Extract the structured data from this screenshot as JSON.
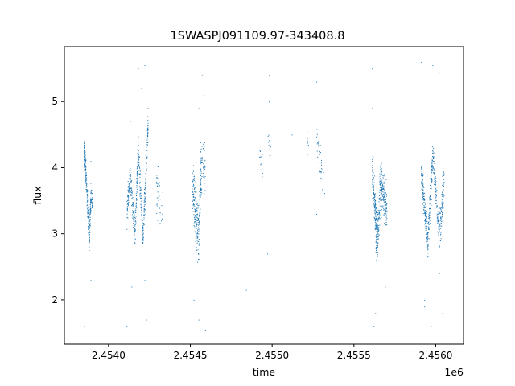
{
  "chart_data": {
    "type": "scatter",
    "title": "1SWASPJ091109.97-343408.8",
    "xlabel": "time",
    "ylabel": "flux",
    "x_offset_label": "1e6",
    "xlim": [
      2.45373,
      2.45617
    ],
    "ylim": [
      1.33,
      5.83
    ],
    "x_ticks": [
      2.454,
      2.4545,
      2.455,
      2.4555,
      2.456
    ],
    "x_tick_labels": [
      "2.4540",
      "2.4545",
      "2.4550",
      "2.4555",
      "2.4560"
    ],
    "y_ticks": [
      2,
      3,
      4,
      5
    ],
    "y_tick_labels": [
      "2",
      "3",
      "4",
      "5"
    ],
    "grid": false,
    "marker_color": "#1f77b4",
    "series": [
      {
        "segments": [
          {
            "x_start": 2.45385,
            "x_end": 2.45386,
            "y_start": 4.3,
            "y_end": 3.9,
            "spread": 0.15,
            "n": 70
          },
          {
            "x_start": 2.45386,
            "x_end": 2.45388,
            "y_start": 3.9,
            "y_end": 2.9,
            "spread": 0.15,
            "n": 90
          },
          {
            "x_start": 2.45388,
            "x_end": 2.45389,
            "y_start": 2.9,
            "y_end": 3.6,
            "spread": 0.15,
            "n": 70
          },
          {
            "x_start": 2.45389,
            "x_end": 2.4539,
            "y_start": 3.6,
            "y_end": 3.5,
            "spread": 0.15,
            "n": 30
          },
          {
            "x_start": 2.45411,
            "x_end": 2.45413,
            "y_start": 3.3,
            "y_end": 3.9,
            "spread": 0.18,
            "n": 70
          },
          {
            "x_start": 2.45413,
            "x_end": 2.45416,
            "y_start": 3.9,
            "y_end": 3.0,
            "spread": 0.18,
            "n": 90
          },
          {
            "x_start": 2.45416,
            "x_end": 2.45418,
            "y_start": 3.0,
            "y_end": 4.3,
            "spread": 0.18,
            "n": 90
          },
          {
            "x_start": 2.45418,
            "x_end": 2.45421,
            "y_start": 4.2,
            "y_end": 2.9,
            "spread": 0.18,
            "n": 100
          },
          {
            "x_start": 2.45421,
            "x_end": 2.45424,
            "y_start": 3.0,
            "y_end": 4.7,
            "spread": 0.2,
            "n": 120
          },
          {
            "x_start": 2.45429,
            "x_end": 2.45433,
            "y_start": 3.6,
            "y_end": 3.4,
            "spread": 0.35,
            "n": 40
          },
          {
            "x_start": 2.45451,
            "x_end": 2.45453,
            "y_start": 3.8,
            "y_end": 3.3,
            "spread": 0.3,
            "n": 80
          },
          {
            "x_start": 2.45453,
            "x_end": 2.45455,
            "y_start": 3.3,
            "y_end": 3.0,
            "spread": 0.45,
            "n": 90
          },
          {
            "x_start": 2.45455,
            "x_end": 2.45456,
            "y_start": 3.0,
            "y_end": 3.9,
            "spread": 0.4,
            "n": 60
          },
          {
            "x_start": 2.45456,
            "x_end": 2.45459,
            "y_start": 3.9,
            "y_end": 4.1,
            "spread": 0.35,
            "n": 70
          },
          {
            "x_start": 2.45492,
            "x_end": 2.45494,
            "y_start": 4.2,
            "y_end": 4.0,
            "spread": 0.25,
            "n": 14
          },
          {
            "x_start": 2.45497,
            "x_end": 2.45499,
            "y_start": 4.5,
            "y_end": 4.2,
            "spread": 0.2,
            "n": 10
          },
          {
            "x_start": 2.45521,
            "x_end": 2.45522,
            "y_start": 4.5,
            "y_end": 4.3,
            "spread": 0.2,
            "n": 8
          },
          {
            "x_start": 2.45527,
            "x_end": 2.45532,
            "y_start": 4.5,
            "y_end": 3.6,
            "spread": 0.2,
            "n": 40
          },
          {
            "x_start": 2.45561,
            "x_end": 2.45563,
            "y_start": 3.9,
            "y_end": 3.3,
            "spread": 0.25,
            "n": 120
          },
          {
            "x_start": 2.45563,
            "x_end": 2.45564,
            "y_start": 3.3,
            "y_end": 2.8,
            "spread": 0.3,
            "n": 80
          },
          {
            "x_start": 2.45564,
            "x_end": 2.45566,
            "y_start": 2.8,
            "y_end": 3.8,
            "spread": 0.3,
            "n": 100
          },
          {
            "x_start": 2.45566,
            "x_end": 2.45569,
            "y_start": 3.8,
            "y_end": 3.4,
            "spread": 0.3,
            "n": 120
          },
          {
            "x_start": 2.45569,
            "x_end": 2.4557,
            "y_start": 3.5,
            "y_end": 3.3,
            "spread": 0.25,
            "n": 40
          },
          {
            "x_start": 2.45591,
            "x_end": 2.45593,
            "y_start": 3.9,
            "y_end": 3.4,
            "spread": 0.2,
            "n": 90
          },
          {
            "x_start": 2.45593,
            "x_end": 2.45595,
            "y_start": 3.4,
            "y_end": 2.9,
            "spread": 0.2,
            "n": 90
          },
          {
            "x_start": 2.45595,
            "x_end": 2.45598,
            "y_start": 2.9,
            "y_end": 4.2,
            "spread": 0.22,
            "n": 120
          },
          {
            "x_start": 2.45598,
            "x_end": 2.45602,
            "y_start": 4.2,
            "y_end": 3.0,
            "spread": 0.22,
            "n": 120
          },
          {
            "x_start": 2.45602,
            "x_end": 2.45605,
            "y_start": 3.0,
            "y_end": 3.8,
            "spread": 0.22,
            "n": 100
          }
        ],
        "outliers": [
          [
            2.45385,
            1.6
          ],
          [
            2.45389,
            2.3
          ],
          [
            2.45389,
            4.1
          ],
          [
            2.45411,
            1.6
          ],
          [
            2.45413,
            2.6
          ],
          [
            2.45414,
            2.2
          ],
          [
            2.45413,
            4.7
          ],
          [
            2.45418,
            5.5
          ],
          [
            2.4542,
            5.2
          ],
          [
            2.45422,
            5.55
          ],
          [
            2.45422,
            2.3
          ],
          [
            2.45423,
            1.7
          ],
          [
            2.45452,
            2.0
          ],
          [
            2.45455,
            1.7
          ],
          [
            2.45455,
            4.9
          ],
          [
            2.45457,
            5.4
          ],
          [
            2.45459,
            1.55
          ],
          [
            2.45458,
            5.1
          ],
          [
            2.45484,
            2.15
          ],
          [
            2.45497,
            2.7
          ],
          [
            2.45498,
            5.4
          ],
          [
            2.45498,
            5.0
          ],
          [
            2.45512,
            4.5
          ],
          [
            2.45527,
            5.3
          ],
          [
            2.45527,
            3.3
          ],
          [
            2.45561,
            5.5
          ],
          [
            2.45562,
            1.6
          ],
          [
            2.45563,
            1.8
          ],
          [
            2.45569,
            2.2
          ],
          [
            2.45561,
            4.9
          ],
          [
            2.45591,
            5.6
          ],
          [
            2.45593,
            2.0
          ],
          [
            2.45593,
            1.9
          ],
          [
            2.45598,
            5.55
          ],
          [
            2.45597,
            1.6
          ],
          [
            2.45602,
            5.45
          ],
          [
            2.45602,
            2.4
          ],
          [
            2.45604,
            1.8
          ]
        ]
      }
    ]
  }
}
